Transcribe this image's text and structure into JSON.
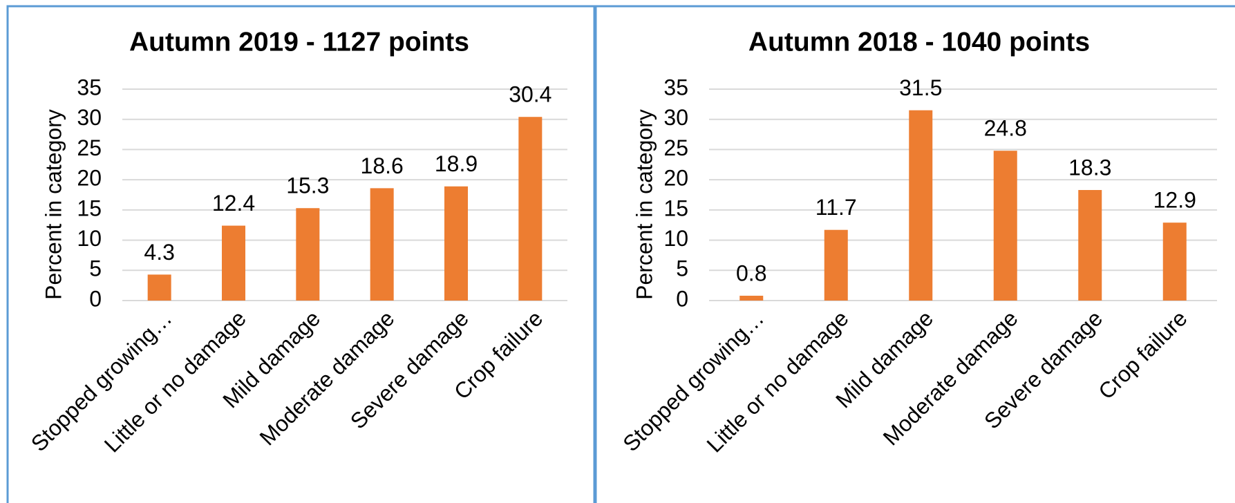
{
  "chart_data": [
    {
      "type": "bar",
      "title": "Autumn 2019 - 1127 points",
      "y_label": "Percent in category",
      "categories": [
        "Stopped growing…",
        "Little or no damage",
        "Mild damage",
        "Moderate damage",
        "Severe damage",
        "Crop failure"
      ],
      "values": [
        4.3,
        12.4,
        15.3,
        18.6,
        18.9,
        30.4
      ],
      "color": "#ed7d31",
      "ylim": [
        0,
        35
      ],
      "yticks": [
        0,
        5,
        10,
        15,
        20,
        25,
        30,
        35
      ],
      "grid": true
    },
    {
      "type": "bar",
      "title": "Autumn 2018 - 1040 points",
      "y_label": "Percent in category",
      "categories": [
        "Stopped growing…",
        "Little or no damage",
        "Mild damage",
        "Moderate damage",
        "Severe damage",
        "Crop failure"
      ],
      "values": [
        0.8,
        11.7,
        31.5,
        24.8,
        18.3,
        12.9
      ],
      "color": "#ed7d31",
      "ylim": [
        0,
        35
      ],
      "yticks": [
        0,
        5,
        10,
        15,
        20,
        25,
        30,
        35
      ],
      "grid": true
    }
  ]
}
